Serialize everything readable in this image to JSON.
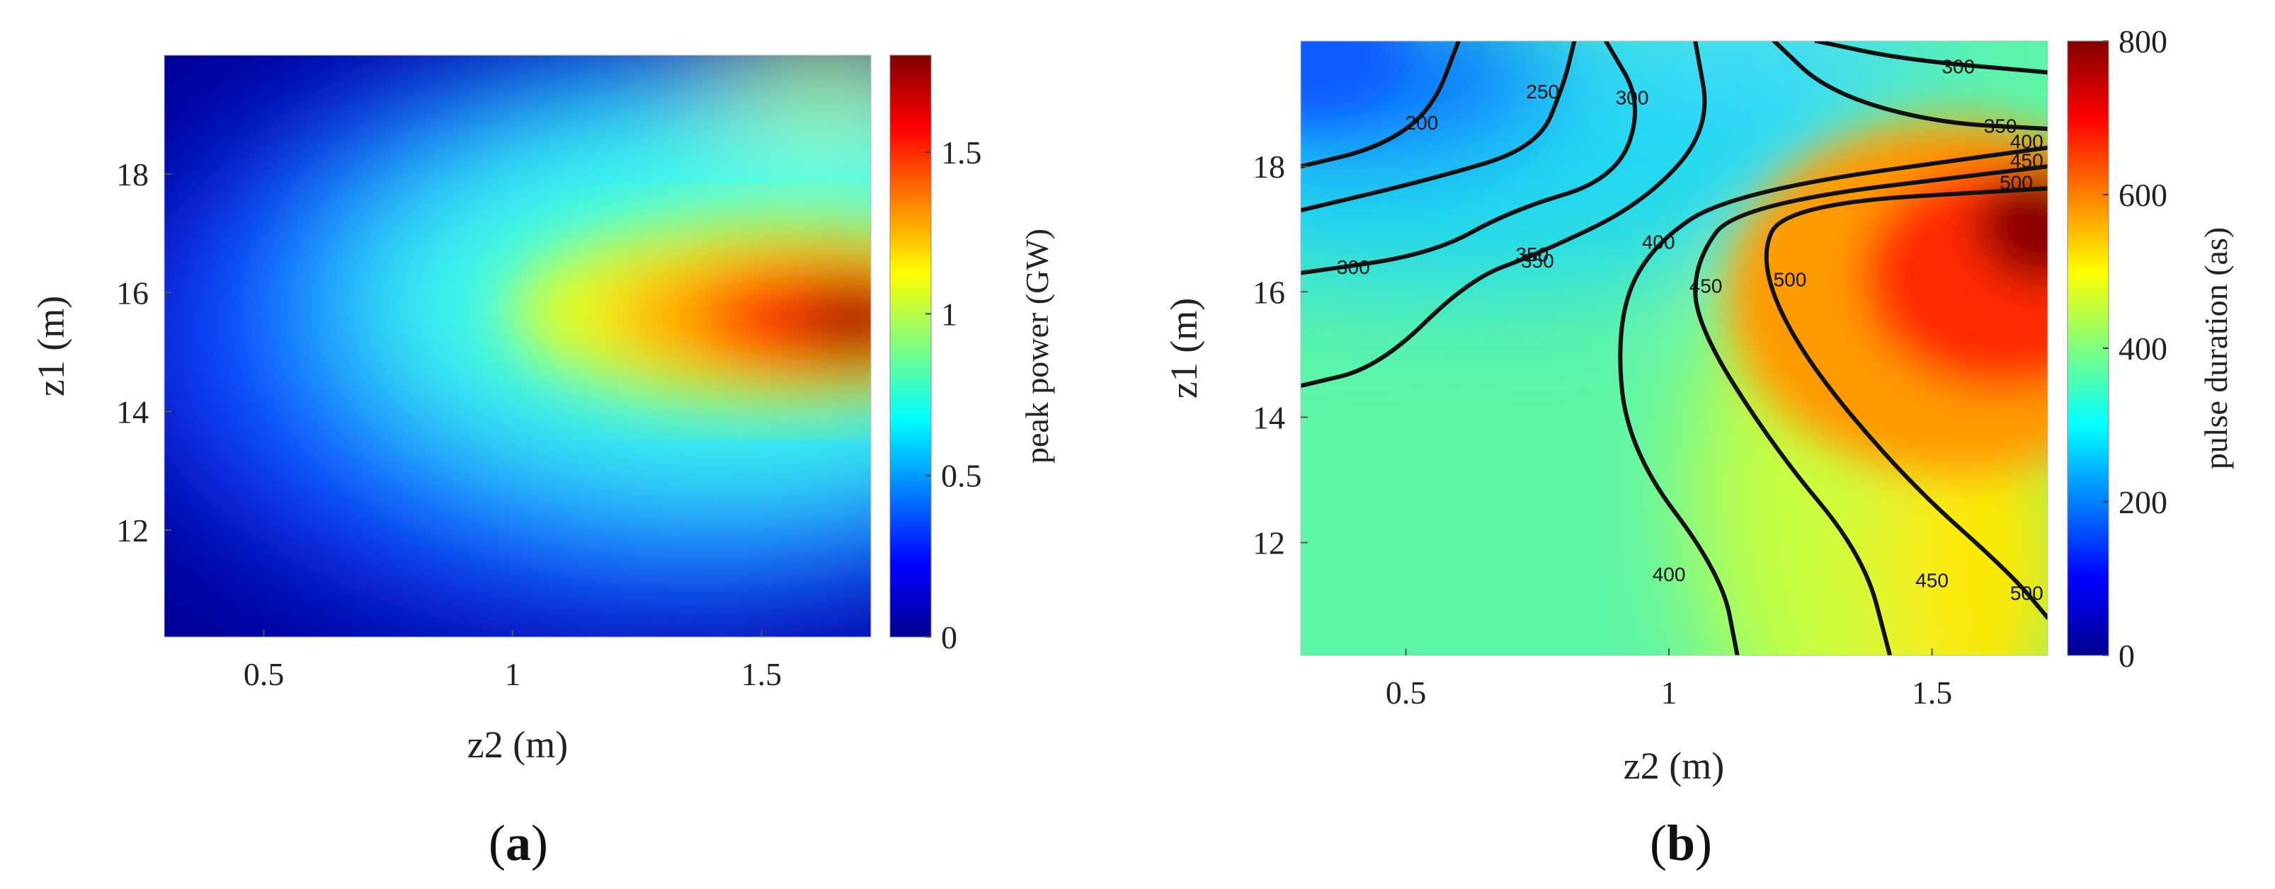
{
  "panels": [
    {
      "label_open": "(",
      "label_letter": "a",
      "label_close": ")"
    },
    {
      "label_open": "(",
      "label_letter": "b",
      "label_close": ")"
    }
  ],
  "chart_data": [
    {
      "type": "heatmap",
      "title": "",
      "xlabel": "z2 (m)",
      "ylabel": "z1 (m)",
      "colorbar_label": "peak power (GW)",
      "xlim": [
        0.3,
        1.72
      ],
      "ylim": [
        10.2,
        20.0
      ],
      "xticks": [
        0.5,
        1,
        1.5
      ],
      "yticks": [
        12,
        14,
        16,
        18
      ],
      "clim": [
        0,
        1.8
      ],
      "cticks": [
        0,
        0.5,
        1,
        1.5
      ],
      "colormap": "jet",
      "peak": {
        "x": 1.72,
        "y": 15.0,
        "value": 1.8
      },
      "profile_samples": [
        {
          "x": 0.5,
          "y": 16.0,
          "value": 0.6
        },
        {
          "x": 1.0,
          "y": 15.5,
          "value": 1.05
        },
        {
          "x": 1.5,
          "y": 15.0,
          "value": 1.65
        },
        {
          "x": 1.0,
          "y": 12.0,
          "value": 0.1
        },
        {
          "x": 1.5,
          "y": 19.0,
          "value": 0.8
        }
      ]
    },
    {
      "type": "heatmap",
      "title": "",
      "xlabel": "z2 (m)",
      "ylabel": "z1 (m)",
      "colorbar_label": "pulse duration (as)",
      "xlim": [
        0.3,
        1.72
      ],
      "ylim": [
        10.2,
        20.0
      ],
      "xticks": [
        0.5,
        1,
        1.5
      ],
      "yticks": [
        12,
        14,
        16,
        18
      ],
      "clim": [
        0,
        800
      ],
      "cticks": [
        0,
        200,
        400,
        600,
        800
      ],
      "colormap": "jet",
      "contour_levels": [
        200,
        250,
        300,
        350,
        400,
        450,
        500
      ],
      "contours": [
        {
          "level": "200",
          "points": [
            [
              0.3,
              18.0
            ],
            [
              0.45,
              18.3
            ],
            [
              0.55,
              18.9
            ],
            [
              0.6,
              20.0
            ]
          ],
          "label_at": [
            0.53,
            18.7
          ]
        },
        {
          "level": "250",
          "points": [
            [
              0.3,
              17.3
            ],
            [
              0.55,
              17.8
            ],
            [
              0.75,
              18.3
            ],
            [
              0.8,
              19.3
            ],
            [
              0.82,
              20.0
            ]
          ],
          "label_at": [
            0.76,
            19.2
          ]
        },
        {
          "level": "300",
          "points": [
            [
              0.3,
              16.3
            ],
            [
              0.55,
              16.6
            ],
            [
              0.7,
              17.3
            ],
            [
              0.9,
              17.8
            ],
            [
              0.95,
              19.0
            ],
            [
              0.88,
              20.0
            ]
          ],
          "label_at": [
            0.93,
            19.1
          ]
        },
        {
          "level": "300",
          "points": [
            [
              1.28,
              20.0
            ],
            [
              1.45,
              19.7
            ],
            [
              1.72,
              19.5
            ]
          ],
          "label_at": [
            1.55,
            19.6
          ]
        },
        {
          "level": "350",
          "points": [
            [
              0.3,
              14.5
            ],
            [
              0.45,
              14.8
            ],
            [
              0.62,
              16.2
            ],
            [
              0.75,
              16.6
            ],
            [
              0.95,
              17.4
            ],
            [
              1.08,
              18.6
            ],
            [
              1.05,
              20.0
            ]
          ],
          "label_at": [
            0.74,
            16.6
          ]
        },
        {
          "level": "350",
          "points": [
            [
              1.2,
              20.0
            ],
            [
              1.3,
              19.2
            ],
            [
              1.5,
              18.7
            ],
            [
              1.72,
              18.6
            ]
          ],
          "label_at": [
            1.63,
            18.65
          ]
        },
        {
          "level": "400",
          "points": [
            [
              1.13,
              10.2
            ],
            [
              1.1,
              11.5
            ],
            [
              0.92,
              13.5
            ],
            [
              0.9,
              15.5
            ],
            [
              0.96,
              16.7
            ],
            [
              1.12,
              17.6
            ],
            [
              1.72,
              18.3
            ]
          ],
          "label_at": [
            0.98,
            16.8
          ]
        },
        {
          "level": "450",
          "points": [
            [
              1.42,
              10.2
            ],
            [
              1.37,
              11.8
            ],
            [
              1.2,
              13.5
            ],
            [
              1.05,
              15.5
            ],
            [
              1.05,
              16.5
            ],
            [
              1.13,
              17.4
            ],
            [
              1.72,
              18.0
            ]
          ],
          "label_at": [
            1.07,
            16.1
          ]
        },
        {
          "level": "500",
          "points": [
            [
              1.72,
              10.8
            ],
            [
              1.65,
              11.5
            ],
            [
              1.45,
              13.0
            ],
            [
              1.25,
              15.0
            ],
            [
              1.17,
              16.5
            ],
            [
              1.22,
              17.4
            ],
            [
              1.72,
              17.65
            ]
          ],
          "label_at": [
            1.23,
            16.2
          ]
        }
      ],
      "contour_labels_extra": [
        {
          "text": "400",
          "at": [
            1.68,
            18.4
          ]
        },
        {
          "text": "450",
          "at": [
            1.68,
            18.1
          ]
        },
        {
          "text": "500",
          "at": [
            1.66,
            17.75
          ]
        },
        {
          "text": "400",
          "at": [
            1.0,
            11.5
          ]
        },
        {
          "text": "450",
          "at": [
            1.5,
            11.4
          ]
        },
        {
          "text": "500",
          "at": [
            1.68,
            11.2
          ]
        },
        {
          "text": "300",
          "at": [
            0.4,
            16.4
          ]
        },
        {
          "text": "350",
          "at": [
            0.75,
            16.5
          ]
        }
      ],
      "max_region": {
        "x_from": 1.13,
        "y_to": 17.65,
        "value": 800
      }
    }
  ]
}
